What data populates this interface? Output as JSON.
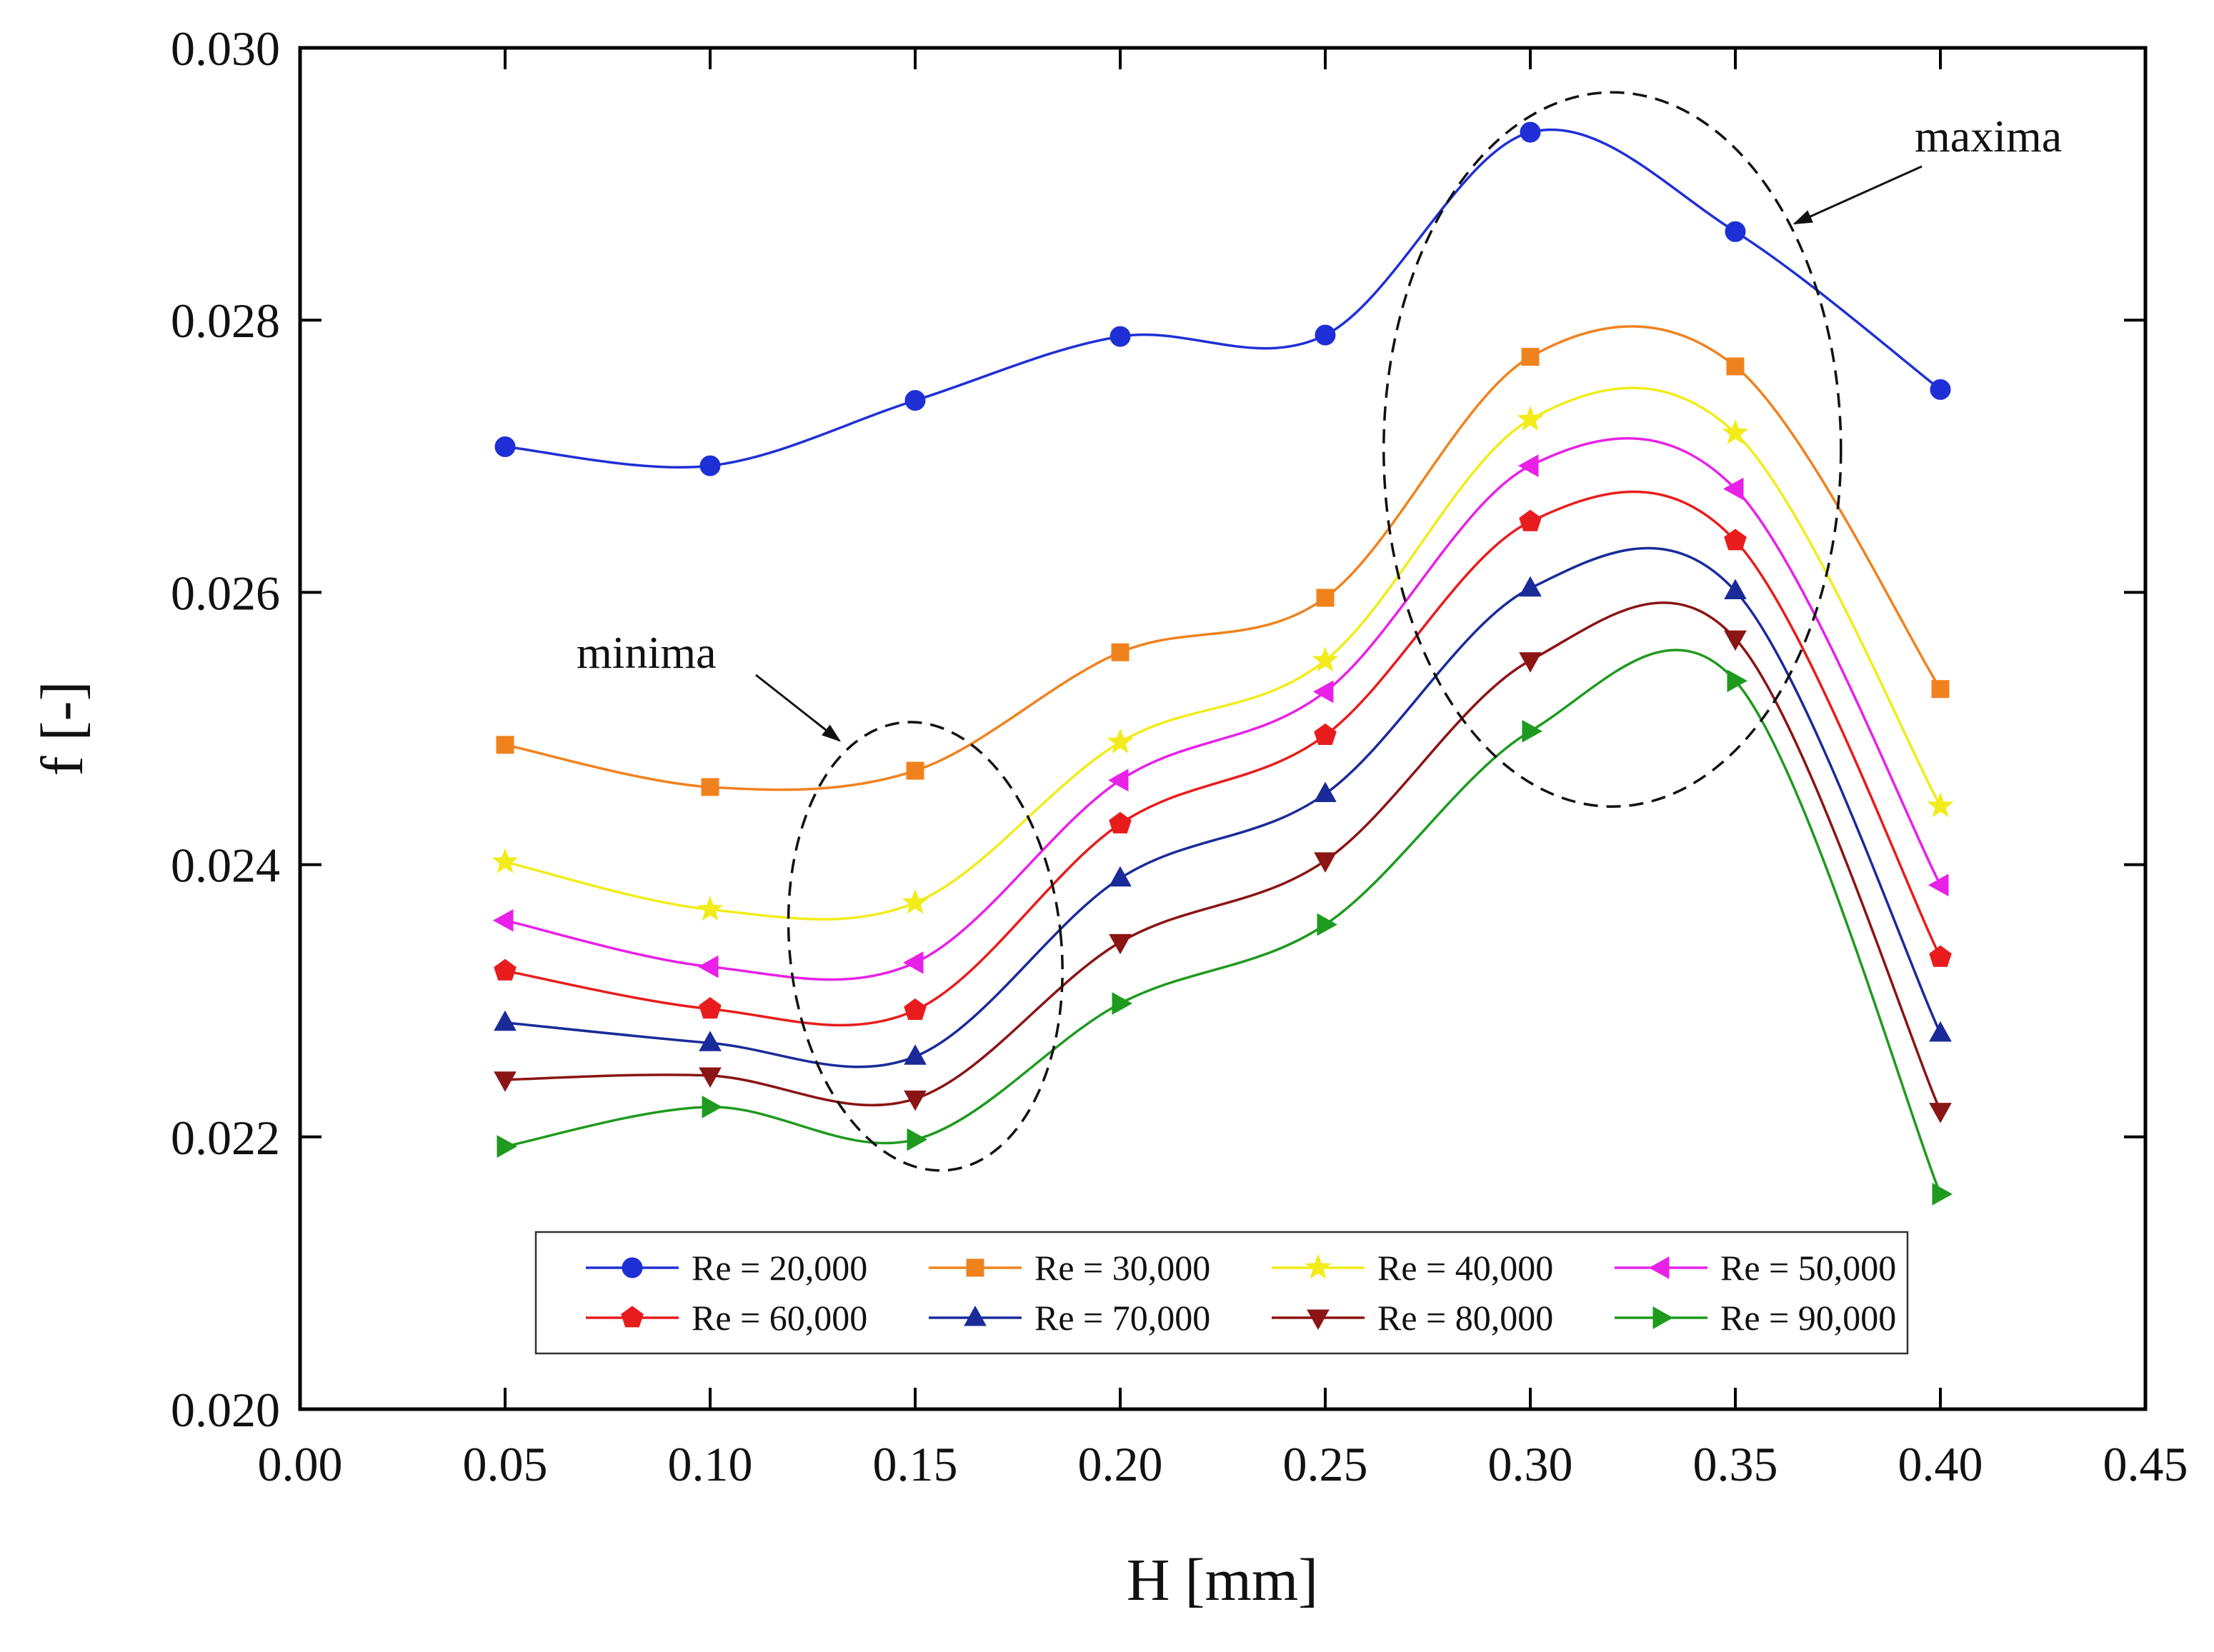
{
  "chart_data": {
    "type": "line",
    "title": "",
    "xlabel": "H [mm]",
    "ylabel": "f [-]",
    "xlim": [
      0.0,
      0.45
    ],
    "ylim": [
      0.02,
      0.03
    ],
    "x_ticks": [
      0.0,
      0.05,
      0.1,
      0.15,
      0.2,
      0.25,
      0.3,
      0.35,
      0.4,
      0.45
    ],
    "x_tick_labels": [
      "0.00",
      "0.05",
      "0.10",
      "0.15",
      "0.20",
      "0.25",
      "0.30",
      "0.35",
      "0.40",
      "0.45"
    ],
    "y_ticks": [
      0.02,
      0.022,
      0.024,
      0.026,
      0.028,
      0.03
    ],
    "y_tick_labels": [
      "0.020",
      "0.022",
      "0.024",
      "0.026",
      "0.028",
      "0.030"
    ],
    "grid": false,
    "legend_position": "bottom-center",
    "x": [
      0.05,
      0.1,
      0.15,
      0.2,
      0.25,
      0.3,
      0.35,
      0.4
    ],
    "series": [
      {
        "name": "Re = 20,000",
        "marker": "circle",
        "color": "#1f2fd6",
        "values": [
          0.02707,
          0.02693,
          0.02741,
          0.02788,
          0.02789,
          0.02938,
          0.02865,
          0.02749
        ]
      },
      {
        "name": "Re = 30,000",
        "marker": "square",
        "color": "#f0821e",
        "values": [
          0.02488,
          0.02457,
          0.02469,
          0.02556,
          0.02596,
          0.02773,
          0.02766,
          0.02529
        ]
      },
      {
        "name": "Re = 40,000",
        "marker": "star",
        "color": "#f2ec1a",
        "values": [
          0.02402,
          0.02367,
          0.02372,
          0.0249,
          0.0255,
          0.02727,
          0.02717,
          0.02443
        ]
      },
      {
        "name": "Re = 50,000",
        "marker": "triangle-left",
        "color": "#e820e8",
        "values": [
          0.02359,
          0.02325,
          0.02328,
          0.02462,
          0.02527,
          0.02693,
          0.02676,
          0.02385
        ]
      },
      {
        "name": "Re = 60,000",
        "marker": "pentagon",
        "color": "#e81c1c",
        "values": [
          0.02322,
          0.02294,
          0.02293,
          0.0243,
          0.02495,
          0.02652,
          0.02638,
          0.02332
        ]
      },
      {
        "name": "Re = 70,000",
        "marker": "triangle-up",
        "color": "#1a2b99",
        "values": [
          0.02284,
          0.02269,
          0.02259,
          0.0239,
          0.02452,
          0.02603,
          0.02601,
          0.02276
        ]
      },
      {
        "name": "Re = 80,000",
        "marker": "triangle-down",
        "color": "#8b1414",
        "values": [
          0.02242,
          0.02245,
          0.02228,
          0.02343,
          0.02403,
          0.0255,
          0.02566,
          0.02219
        ]
      },
      {
        "name": "Re = 90,000",
        "marker": "triangle-right",
        "color": "#1e9a1e",
        "values": [
          0.02193,
          0.02222,
          0.02198,
          0.02298,
          0.02356,
          0.02498,
          0.02535,
          0.02158
        ]
      }
    ],
    "annotations": [
      {
        "text": "maxima",
        "target_x": 0.32,
        "target_y": 0.0271
      },
      {
        "text": "minima",
        "target_x": 0.15,
        "target_y": 0.0235
      }
    ]
  }
}
